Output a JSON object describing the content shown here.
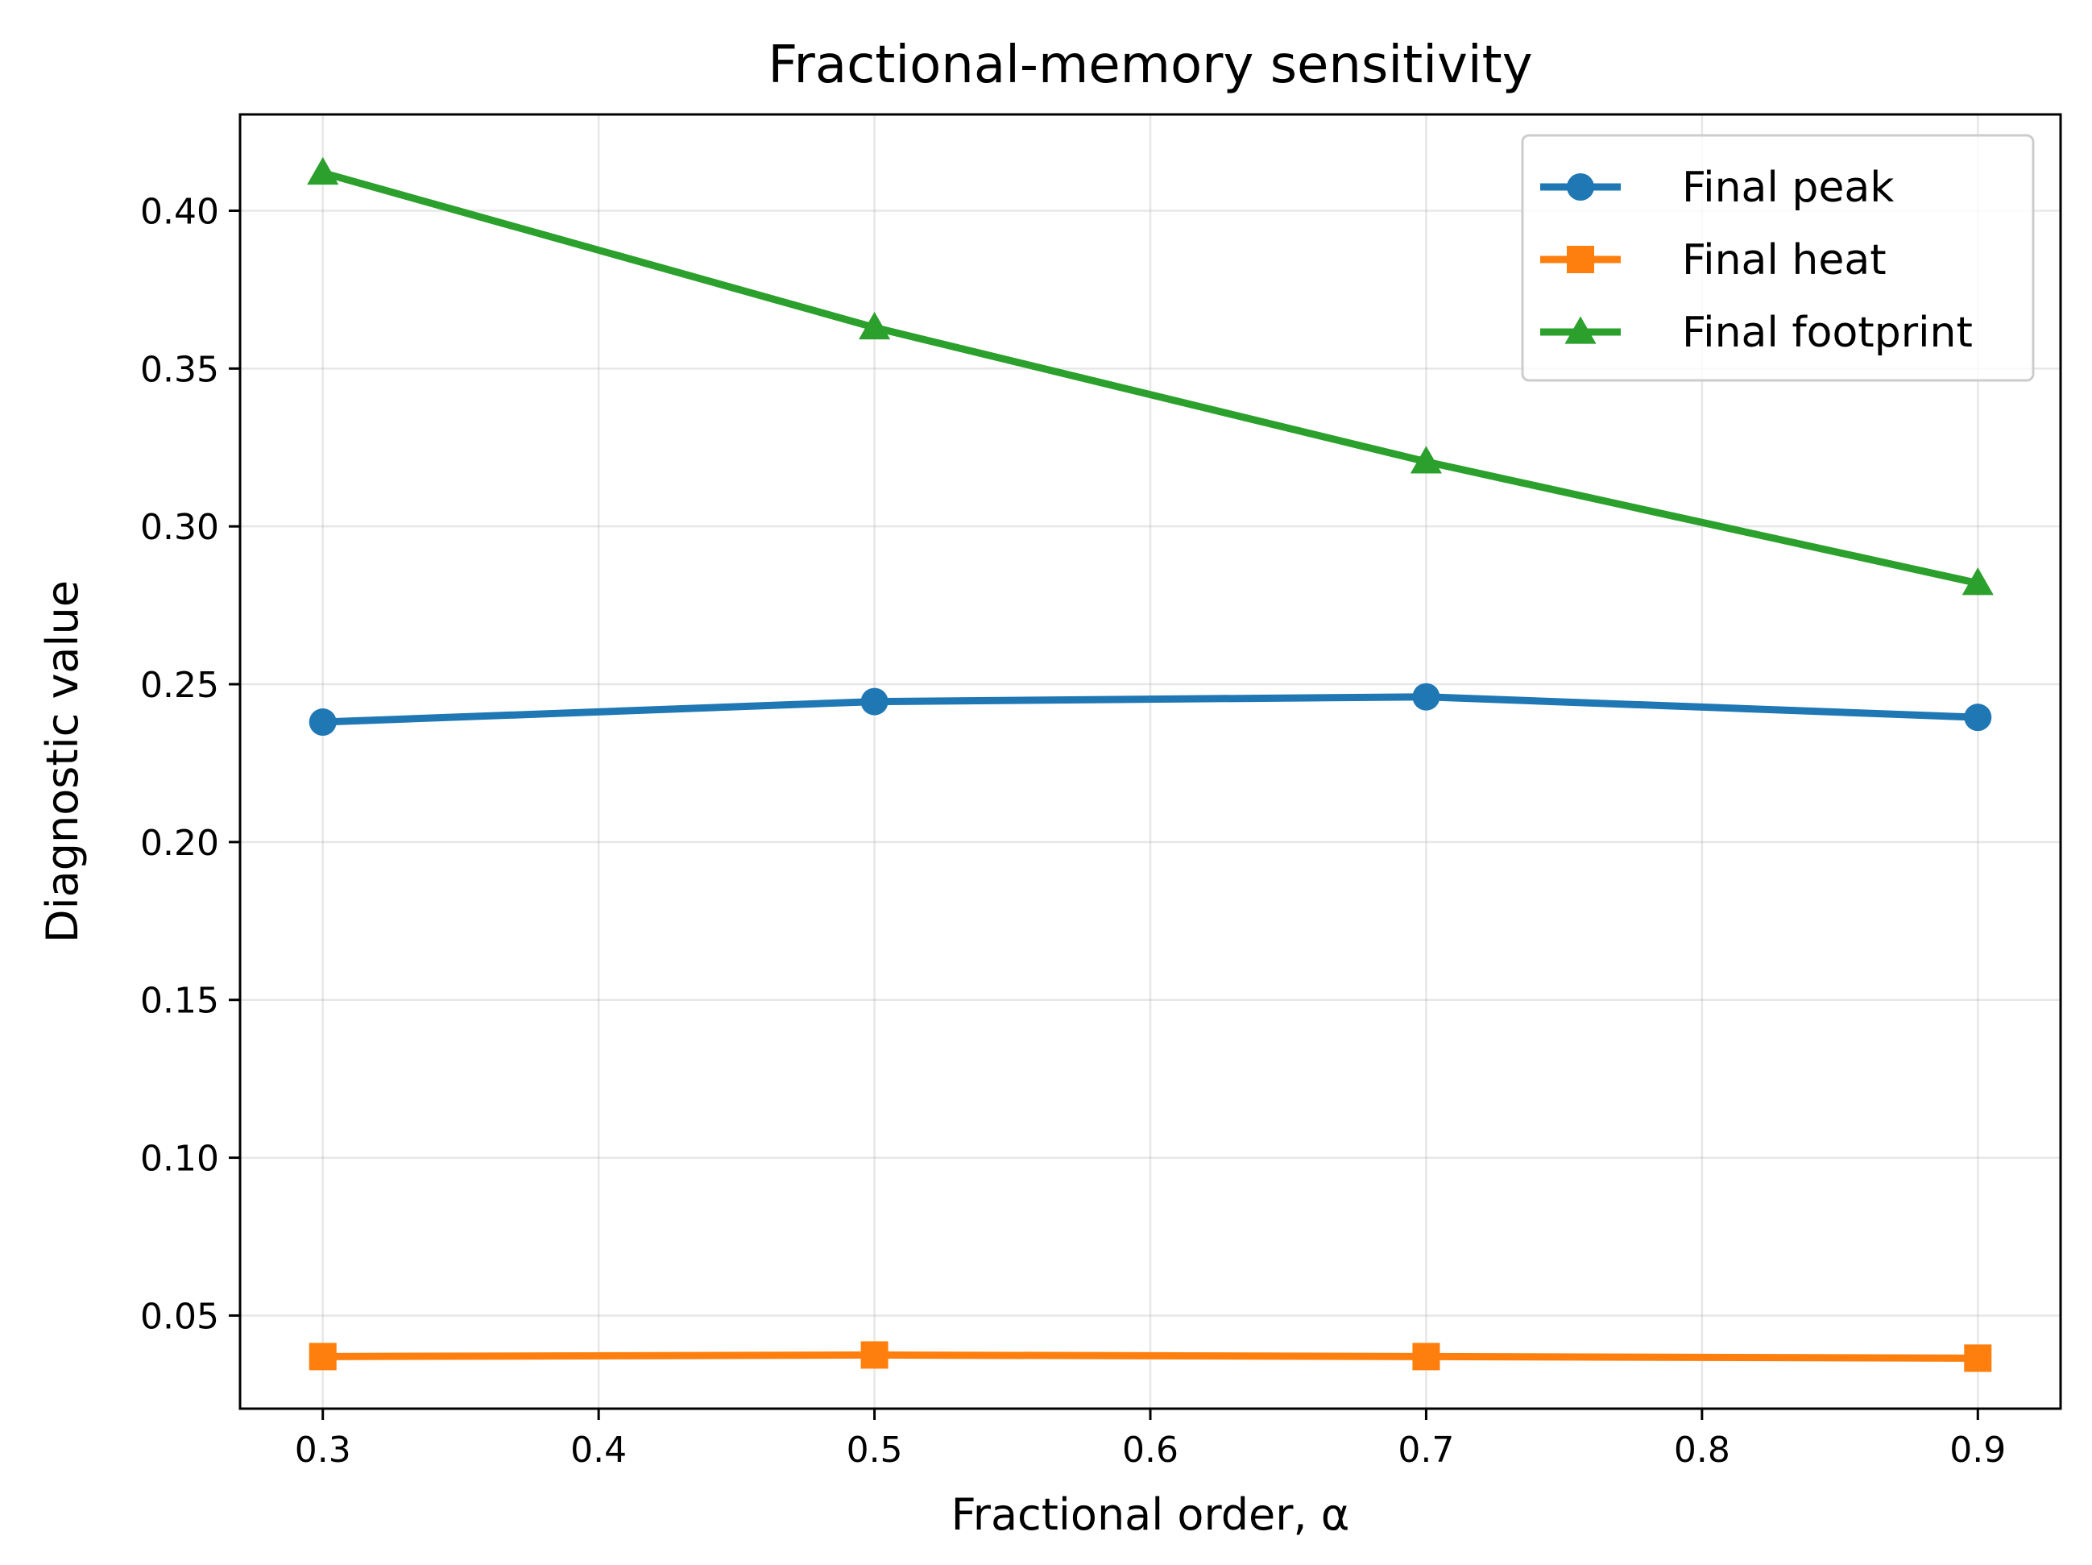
{
  "chart_data": {
    "type": "line",
    "title": "Fractional-memory sensitivity",
    "xlabel": "Fractional order, α",
    "ylabel": "Diagnostic value",
    "x": [
      0.3,
      0.5,
      0.7,
      0.9
    ],
    "xlim": [
      0.27,
      0.93
    ],
    "ylim": [
      0.0205,
      0.4305
    ],
    "xticks": [
      0.3,
      0.4,
      0.5,
      0.6,
      0.7,
      0.8,
      0.9
    ],
    "xtick_labels": [
      "0.3",
      "0.4",
      "0.5",
      "0.6",
      "0.7",
      "0.8",
      "0.9"
    ],
    "yticks": [
      0.05,
      0.1,
      0.15,
      0.2,
      0.25,
      0.3,
      0.35,
      0.4
    ],
    "ytick_labels": [
      "0.05",
      "0.10",
      "0.15",
      "0.20",
      "0.25",
      "0.30",
      "0.35",
      "0.40"
    ],
    "grid": true,
    "legend_position": "top-right",
    "series": [
      {
        "name": "Final peak",
        "color": "#1f77b4",
        "marker": "circle",
        "values": [
          0.238,
          0.2445,
          0.246,
          0.2395
        ]
      },
      {
        "name": "Final heat",
        "color": "#ff7f0e",
        "marker": "square",
        "values": [
          0.037,
          0.0375,
          0.037,
          0.0365
        ]
      },
      {
        "name": "Final footprint",
        "color": "#2ca02c",
        "marker": "triangle",
        "values": [
          0.412,
          0.363,
          0.3205,
          0.282
        ]
      }
    ]
  }
}
